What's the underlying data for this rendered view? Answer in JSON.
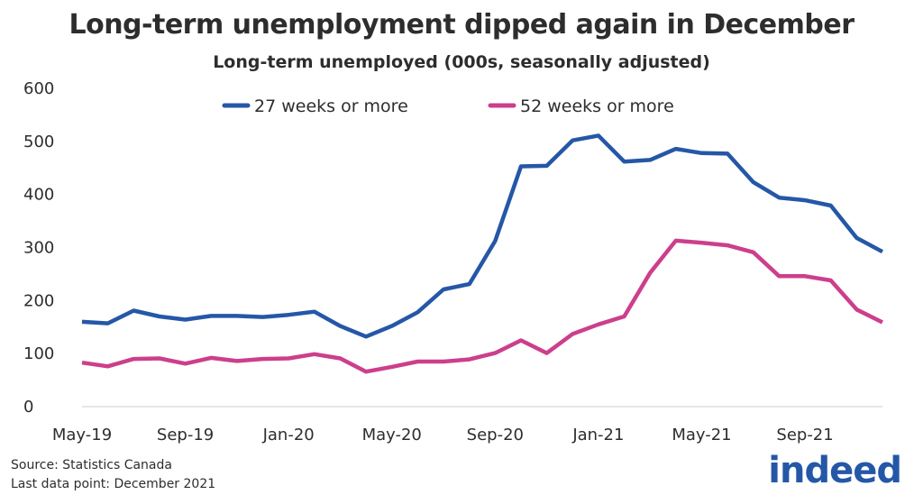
{
  "title": "Long-term unemployment dipped again in December",
  "subtitle": "Long-term unemployed (000s, seasonally adjusted)",
  "footer": {
    "source": "Source: Statistics Canada",
    "last_point": "Last data point: December 2021"
  },
  "logo_text": "indeed",
  "chart_data": {
    "type": "line",
    "title": "Long-term unemployment dipped again in December",
    "ylabel": "Long-term unemployed (000s, seasonally adjusted)",
    "ylim": [
      0,
      600
    ],
    "yticks": [
      "0",
      "100",
      "200",
      "300",
      "400",
      "500",
      "600"
    ],
    "xtick_labels": [
      "May-19",
      "Sep-19",
      "Jan-20",
      "May-20",
      "Sep-20",
      "Jan-21",
      "May-21",
      "Sep-21"
    ],
    "x": [
      "May-19",
      "Jun-19",
      "Jul-19",
      "Aug-19",
      "Sep-19",
      "Oct-19",
      "Nov-19",
      "Dec-19",
      "Jan-20",
      "Feb-20",
      "Mar-20",
      "Apr-20",
      "May-20",
      "Jun-20",
      "Jul-20",
      "Aug-20",
      "Sep-20",
      "Oct-20",
      "Nov-20",
      "Dec-20",
      "Jan-21",
      "Feb-21",
      "Mar-21",
      "Apr-21",
      "May-21",
      "Jun-21",
      "Jul-21",
      "Aug-21",
      "Sep-21",
      "Oct-21",
      "Nov-21",
      "Dec-21"
    ],
    "grid": false,
    "legend_position": "top",
    "series": [
      {
        "name": "27 weeks or more",
        "color": "#2557a7",
        "values": [
          160,
          157,
          181,
          170,
          164,
          171,
          171,
          169,
          173,
          179,
          152,
          132,
          152,
          178,
          221,
          231,
          312,
          453,
          454,
          502,
          511,
          462,
          465,
          486,
          478,
          477,
          423,
          394,
          389,
          379,
          318,
          292
        ]
      },
      {
        "name": "52 weeks or more",
        "color": "#cc3f8c",
        "values": [
          83,
          76,
          90,
          91,
          81,
          92,
          86,
          90,
          91,
          99,
          91,
          66,
          75,
          85,
          85,
          89,
          101,
          125,
          101,
          137,
          155,
          170,
          252,
          313,
          309,
          304,
          291,
          246,
          246,
          238,
          183,
          159
        ]
      }
    ]
  }
}
